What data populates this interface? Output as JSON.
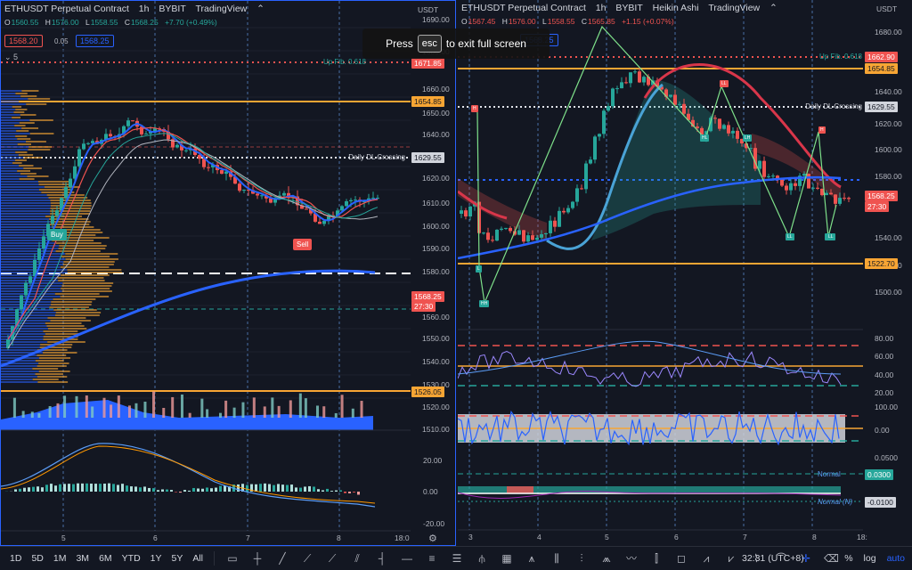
{
  "left": {
    "symbol": "ETHUSDT Perpetual Contract",
    "interval": "1h",
    "exchange": "BYBIT",
    "brand": "TradingView",
    "ohlc": {
      "o": "1560.55",
      "h": "1576.00",
      "l": "1558.55",
      "c": "1568.25",
      "chg": "+7.70 (+0.49%)"
    },
    "bid": "1568.20",
    "spread": "0.05",
    "ask": "1568.25",
    "hidden_count": "5",
    "currency": "USDT",
    "price_axis": [
      "1690.00",
      "1680.00",
      "1660.00",
      "1650.00",
      "1640.00",
      "1620.00",
      "1610.00",
      "1600.00",
      "1590.00",
      "1580.00",
      "1560.00",
      "1550.00",
      "1540.00",
      "1530.00",
      "1520.00",
      "1510.00"
    ],
    "fib_label": "Up Fib. 0.618",
    "fib_price": "1671.85",
    "level_top": "1654.85",
    "daily_dl_label": "Daily DL Crossing",
    "daily_dl_price": "1629.55",
    "last_price": "1568.25",
    "countdown": "27:30",
    "level_bottom": "1526.05",
    "osc_axis": [
      "20.00",
      "0.00",
      "-20.00"
    ],
    "time_axis": [
      "5",
      "6",
      "7",
      "8",
      "18:0"
    ],
    "signal_buy": "Buy",
    "signal_sell": "Sell"
  },
  "right": {
    "symbol": "ETHUSDT Perpetual Contract",
    "interval": "1h",
    "exchange": "BYBIT",
    "style": "Heikin Ashi",
    "brand": "TradingView",
    "ohlc": {
      "o": "1567.45",
      "h": "1576.00",
      "l": "1558.55",
      "c": "1565.85",
      "chg": "+1.15 (+0.07%)"
    },
    "ask": "1568.25",
    "currency": "USDT",
    "price_axis": [
      "1680.00",
      "1640.00",
      "1620.00",
      "1600.00",
      "1580.00",
      "1540.00",
      "1520.00",
      "1500.00"
    ],
    "fib_label": "Up Fib. 0.618",
    "fib_price": "1662.90",
    "level_top": "1654.85",
    "daily_dl_label": "Daily DL Crossing",
    "daily_dl_price": "1629.55",
    "last_price": "1568.25",
    "countdown": "27:30",
    "level_bottom": "1522.70",
    "rsi_axis": [
      "80.00",
      "60.00",
      "40.00",
      "20.00"
    ],
    "osc2_axis": [
      "100.00",
      "0.00"
    ],
    "norm_axis": "0.0500",
    "normal_label": "Normal",
    "normal_value": "0.0300",
    "normal_n_label": "Normal (N)",
    "normal_n_value": "-0.0100",
    "time_axis": [
      "3",
      "4",
      "5",
      "6",
      "7",
      "8",
      "18:"
    ],
    "pivot_labels": [
      "H",
      "L",
      "HH",
      "LL",
      "HL",
      "LH",
      "LL",
      "HL",
      "H",
      "LL"
    ]
  },
  "overlay": {
    "press": "Press",
    "key": "esc",
    "text": "to exit full screen"
  },
  "bottom": {
    "timeframes": [
      "1D",
      "5D",
      "1M",
      "3M",
      "6M",
      "YTD",
      "1Y",
      "5Y",
      "All"
    ],
    "clock": "32:31 (UTC+8)",
    "pct": "%",
    "log": "log",
    "auto": "auto"
  }
}
